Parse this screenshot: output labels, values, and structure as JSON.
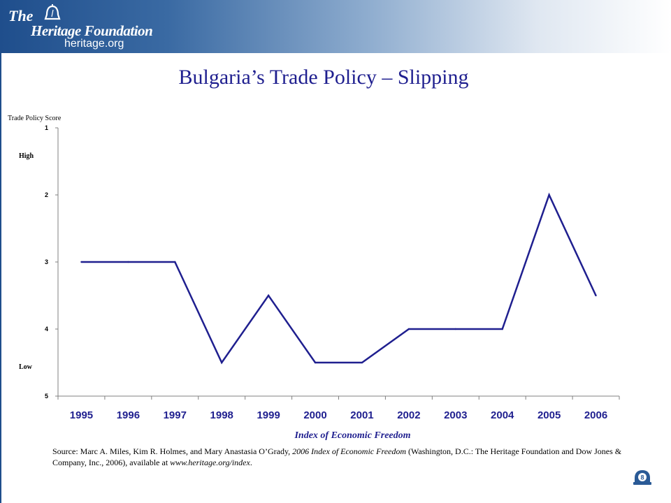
{
  "header": {
    "logo_the": "The",
    "logo_name": "Heritage Foundation",
    "logo_url": "heritage.org",
    "title": "Bulgaria’s Trade Policy – Slipping"
  },
  "chart_data": {
    "type": "line",
    "title": "Bulgaria’s Trade Policy – Slipping",
    "ylabel": "Trade Policy Score",
    "xlabel": "Index of Economic Freedom",
    "y_annotations": {
      "high": "High",
      "low": "Low"
    },
    "categories": [
      "1995",
      "1996",
      "1997",
      "1998",
      "1999",
      "2000",
      "2001",
      "2002",
      "2003",
      "2004",
      "2005",
      "2006"
    ],
    "values": [
      3,
      3,
      3,
      4.5,
      3.5,
      4.5,
      4.5,
      4,
      4,
      4,
      2,
      3.5
    ],
    "ylim": [
      1,
      5
    ],
    "y_inverted": true,
    "yticks": [
      "1",
      "2",
      "3",
      "4",
      "5"
    ],
    "grid": false,
    "line_color": "#1f1f8f"
  },
  "source": {
    "prefix": "Source: Marc A. Miles, Kim R. Holmes, and Mary Anastasia O’Grady, ",
    "book": "2006 Index of Economic Freedom",
    "middle": " (Washington, D.C.: The Heritage Foundation and Dow Jones & Company, Inc., 2006), available at ",
    "url": "www.heritage.org/index",
    "suffix": "."
  },
  "footer": {
    "page_number": "8"
  }
}
